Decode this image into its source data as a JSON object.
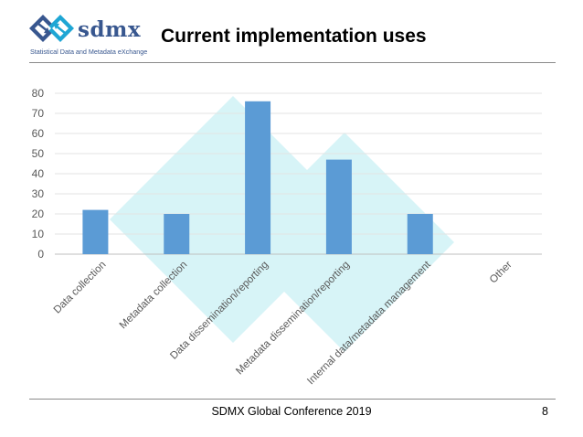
{
  "slide": {
    "title": "Current implementation uses",
    "footer": "SDMX Global Conference 2019",
    "page_number": "8"
  },
  "logo": {
    "word": "sdmx",
    "tagline": "Statistical Data and Metadata eXchange"
  },
  "colors": {
    "bar": "#5b9bd5",
    "watermark": "#d7f4f7",
    "logo_blue": "#38578f",
    "logo_cyan": "#1fa6d4"
  },
  "chart_data": {
    "type": "bar",
    "categories": [
      "Data collection",
      "Metadata collection",
      "Data dissemination/reporting",
      "Metadata dissemination/reporting",
      "Internal data/metadata management",
      "Other"
    ],
    "values": [
      22,
      20,
      76,
      47,
      20,
      0
    ],
    "ylim": [
      0,
      80
    ],
    "yticks": [
      0,
      10,
      20,
      30,
      40,
      50,
      60,
      70,
      80
    ],
    "grid": true,
    "legend": "none"
  }
}
